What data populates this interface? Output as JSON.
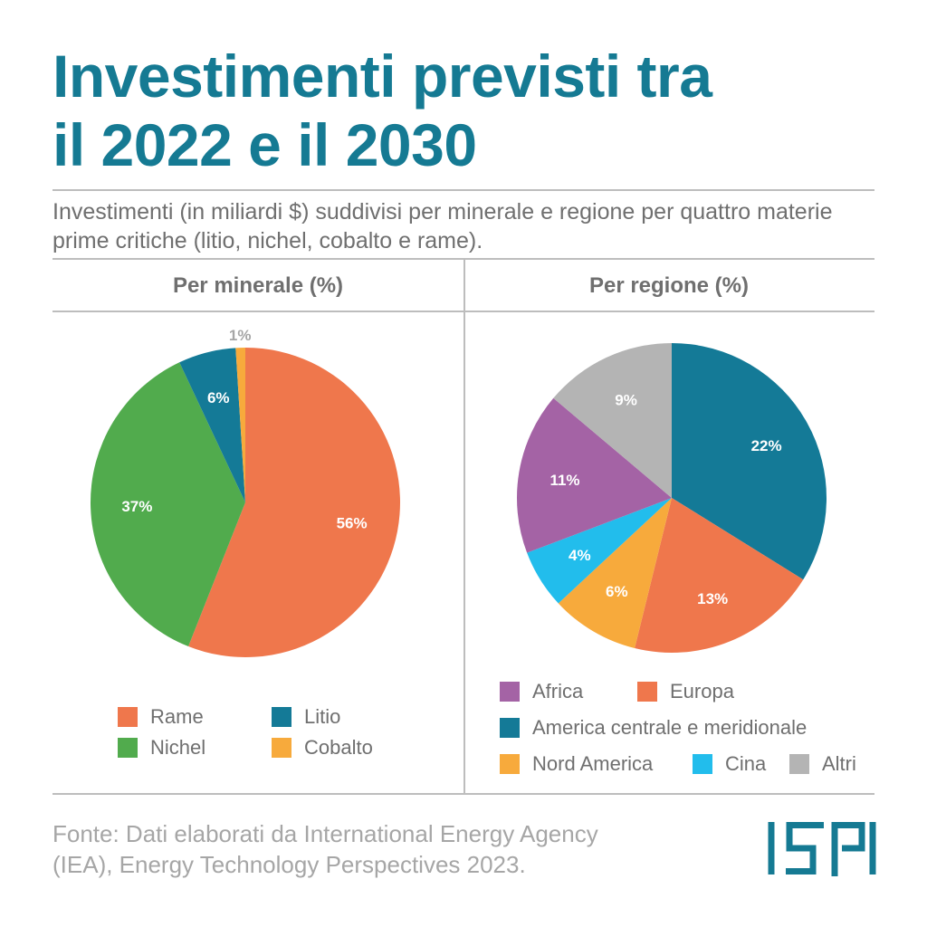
{
  "header": {
    "title_line1": "Investimenti previsti tra",
    "title_line2": "il 2022 e il 2030",
    "subtitle": "Investimenti (in miliardi $) suddivisi per minerale e regione per quattro materie prime critiche (litio, nichel, cobalto e rame)."
  },
  "footer": {
    "source_line1": "Fonte: Dati elaborati da International Energy Agency",
    "source_line2": "(IEA), Energy Technology Perspectives 2023.",
    "logo": "ISPI"
  },
  "colors": {
    "accent": "#157a93",
    "text": "#6f6f6f"
  },
  "chart_data": [
    {
      "type": "pie",
      "title": "Per minerale (%)",
      "slices": [
        {
          "label": "Rame",
          "value": 56,
          "display": "56%",
          "color": "#ef774c"
        },
        {
          "label": "Nichel",
          "value": 37,
          "display": "37%",
          "color": "#51ab4d"
        },
        {
          "label": "Litio",
          "value": 6,
          "display": "6%",
          "color": "#147a97"
        },
        {
          "label": "Cobalto",
          "value": 1,
          "display": "1%",
          "color": "#f7aa3c"
        }
      ]
    },
    {
      "type": "pie",
      "title": "Per regione (%)",
      "slices": [
        {
          "label": "America centrale e meridionale",
          "value": 22,
          "display": "22%",
          "color": "#147a97"
        },
        {
          "label": "Europa",
          "value": 13,
          "display": "13%",
          "color": "#ef774c"
        },
        {
          "label": "Nord America",
          "value": 6,
          "display": "6%",
          "color": "#f7aa3c"
        },
        {
          "label": "Cina",
          "value": 4,
          "display": "4%",
          "color": "#22bdec"
        },
        {
          "label": "Africa",
          "value": 11,
          "display": "11%",
          "color": "#a463a5"
        },
        {
          "label": "Altri",
          "value": 9,
          "display": "9%",
          "color": "#b4b4b4"
        }
      ]
    }
  ]
}
